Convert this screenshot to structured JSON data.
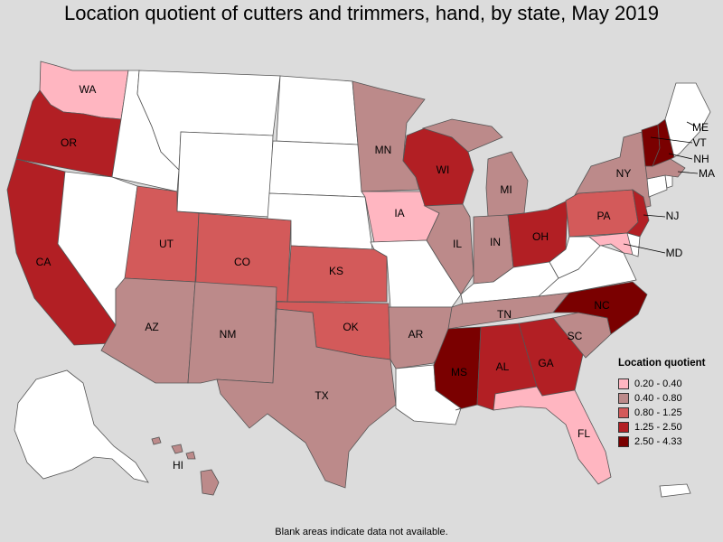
{
  "title": "Location quotient of cutters and trimmers, hand, by state, May 2019",
  "footnote": "Blank areas indicate data not available.",
  "legend": {
    "title": "Location quotient",
    "items": [
      {
        "label": "0.20 - 0.40",
        "color": "#ffb6c1"
      },
      {
        "label": "0.40 - 0.80",
        "color": "#bc8a8a"
      },
      {
        "label": "0.80 - 1.25",
        "color": "#d35a5a"
      },
      {
        "label": "1.25 - 2.50",
        "color": "#b21f24"
      },
      {
        "label": "2.50 - 4.33",
        "color": "#7a0000"
      }
    ]
  },
  "colors": {
    "background": "#dcdcdc",
    "no_data": "#ffffff",
    "lake": "#dcdcdc"
  },
  "states": {
    "WA": {
      "label": "WA",
      "class": "0.20 - 0.40"
    },
    "OR": {
      "label": "OR",
      "class": "1.25 - 2.50"
    },
    "CA": {
      "label": "CA",
      "class": "1.25 - 2.50"
    },
    "ID": {
      "label": "",
      "class": "none"
    },
    "NV": {
      "label": "",
      "class": "none"
    },
    "MT": {
      "label": "",
      "class": "none"
    },
    "WY": {
      "label": "",
      "class": "none"
    },
    "UT": {
      "label": "UT",
      "class": "0.80 - 1.25"
    },
    "CO": {
      "label": "CO",
      "class": "0.80 - 1.25"
    },
    "AZ": {
      "label": "AZ",
      "class": "0.40 - 0.80"
    },
    "NM": {
      "label": "NM",
      "class": "0.40 - 0.80"
    },
    "ND": {
      "label": "",
      "class": "none"
    },
    "SD": {
      "label": "",
      "class": "none"
    },
    "NE": {
      "label": "",
      "class": "none"
    },
    "KS": {
      "label": "KS",
      "class": "0.80 - 1.25"
    },
    "OK": {
      "label": "OK",
      "class": "0.80 - 1.25"
    },
    "TX": {
      "label": "TX",
      "class": "0.40 - 0.80"
    },
    "MN": {
      "label": "MN",
      "class": "0.40 - 0.80"
    },
    "IA": {
      "label": "IA",
      "class": "0.20 - 0.40"
    },
    "MO": {
      "label": "",
      "class": "none"
    },
    "AR": {
      "label": "AR",
      "class": "0.40 - 0.80"
    },
    "LA": {
      "label": "",
      "class": "none"
    },
    "WI": {
      "label": "WI",
      "class": "1.25 - 2.50"
    },
    "IL": {
      "label": "IL",
      "class": "0.40 - 0.80"
    },
    "MI": {
      "label": "MI",
      "class": "0.40 - 0.80"
    },
    "IN": {
      "label": "IN",
      "class": "0.40 - 0.80"
    },
    "OH": {
      "label": "OH",
      "class": "1.25 - 2.50"
    },
    "KY": {
      "label": "",
      "class": "none"
    },
    "TN": {
      "label": "TN",
      "class": "0.40 - 0.80"
    },
    "MS": {
      "label": "MS",
      "class": "2.50 - 4.33"
    },
    "AL": {
      "label": "AL",
      "class": "1.25 - 2.50"
    },
    "GA": {
      "label": "GA",
      "class": "1.25 - 2.50"
    },
    "FL": {
      "label": "FL",
      "class": "0.20 - 0.40"
    },
    "SC": {
      "label": "SC",
      "class": "0.40 - 0.80"
    },
    "NC": {
      "label": "NC",
      "class": "2.50 - 4.33"
    },
    "VA": {
      "label": "",
      "class": "none"
    },
    "WV": {
      "label": "",
      "class": "none"
    },
    "PA": {
      "label": "PA",
      "class": "0.80 - 1.25"
    },
    "NY": {
      "label": "NY",
      "class": "0.40 - 0.80"
    },
    "NJ": {
      "label": "NJ",
      "class": "1.25 - 2.50"
    },
    "MD": {
      "label": "MD",
      "class": "0.20 - 0.40"
    },
    "DE": {
      "label": "",
      "class": "none"
    },
    "CT": {
      "label": "",
      "class": "none"
    },
    "RI": {
      "label": "",
      "class": "none"
    },
    "MA": {
      "label": "MA",
      "class": "0.40 - 0.80"
    },
    "VT": {
      "label": "VT",
      "class": "2.50 - 4.33"
    },
    "NH": {
      "label": "NH",
      "class": "2.50 - 4.33"
    },
    "ME": {
      "label": "ME",
      "class": "none"
    },
    "AK": {
      "label": "",
      "class": "none"
    },
    "HI": {
      "label": "HI",
      "class": "0.40 - 0.80"
    },
    "PR": {
      "label": "",
      "class": "none"
    }
  }
}
